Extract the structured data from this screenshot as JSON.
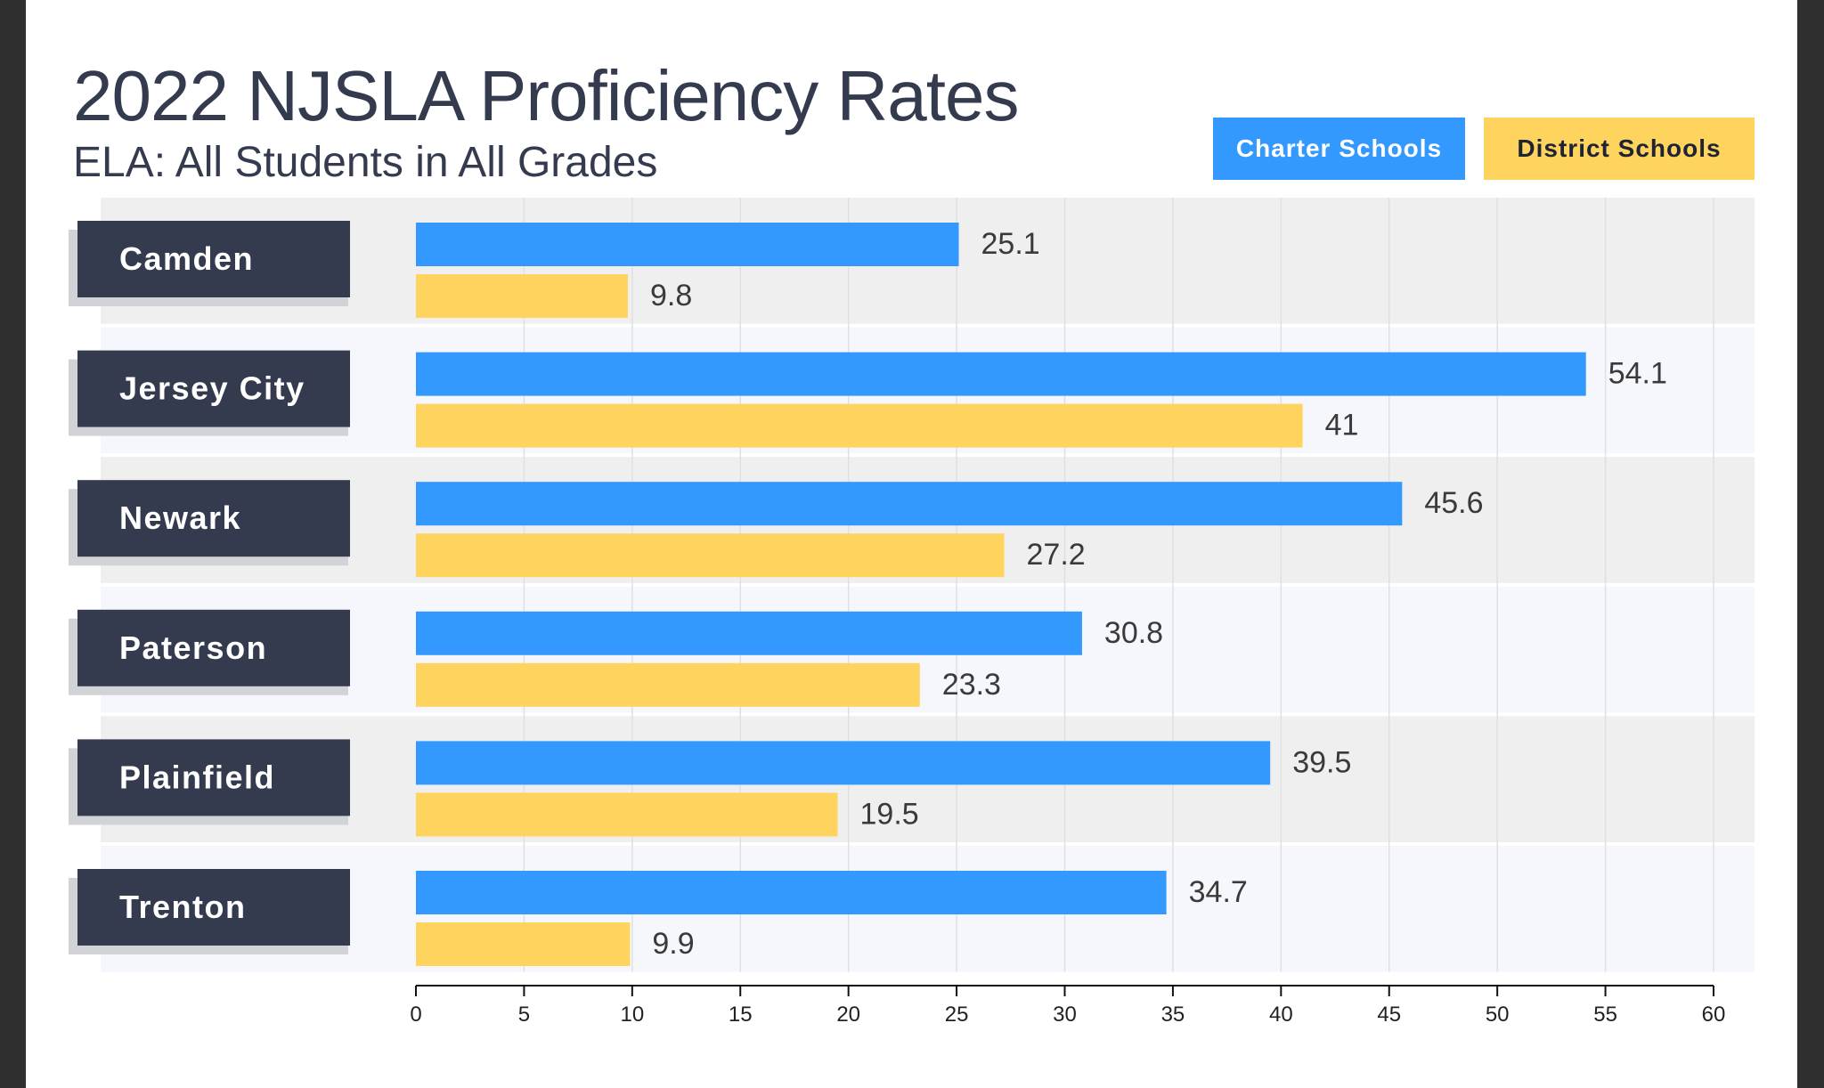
{
  "colors": {
    "charter": "#3399ff",
    "district": "#ffd45e",
    "label_box": "#353b4f",
    "row_gray": "#efefef",
    "row_light": "#f5f7fd"
  },
  "chart_data": {
    "type": "bar",
    "orientation": "horizontal",
    "title": "2022 NJSLA Proficiency Rates",
    "subtitle": "ELA: All Students in All Grades",
    "categories": [
      "Camden",
      "Jersey City",
      "Newark",
      "Paterson",
      "Plainfield",
      "Trenton"
    ],
    "series": [
      {
        "name": "Charter Schools",
        "values": [
          25.1,
          54.1,
          45.6,
          30.8,
          39.5,
          34.7
        ]
      },
      {
        "name": "District Schools",
        "values": [
          9.8,
          41,
          27.2,
          23.3,
          19.5,
          9.9
        ]
      }
    ],
    "xlim": [
      0,
      60
    ],
    "xticks": [
      0,
      5,
      10,
      15,
      20,
      25,
      30,
      35,
      40,
      45,
      50,
      55,
      60
    ],
    "xlabel": "",
    "ylabel": "",
    "grid": true,
    "legend": "top-right"
  }
}
